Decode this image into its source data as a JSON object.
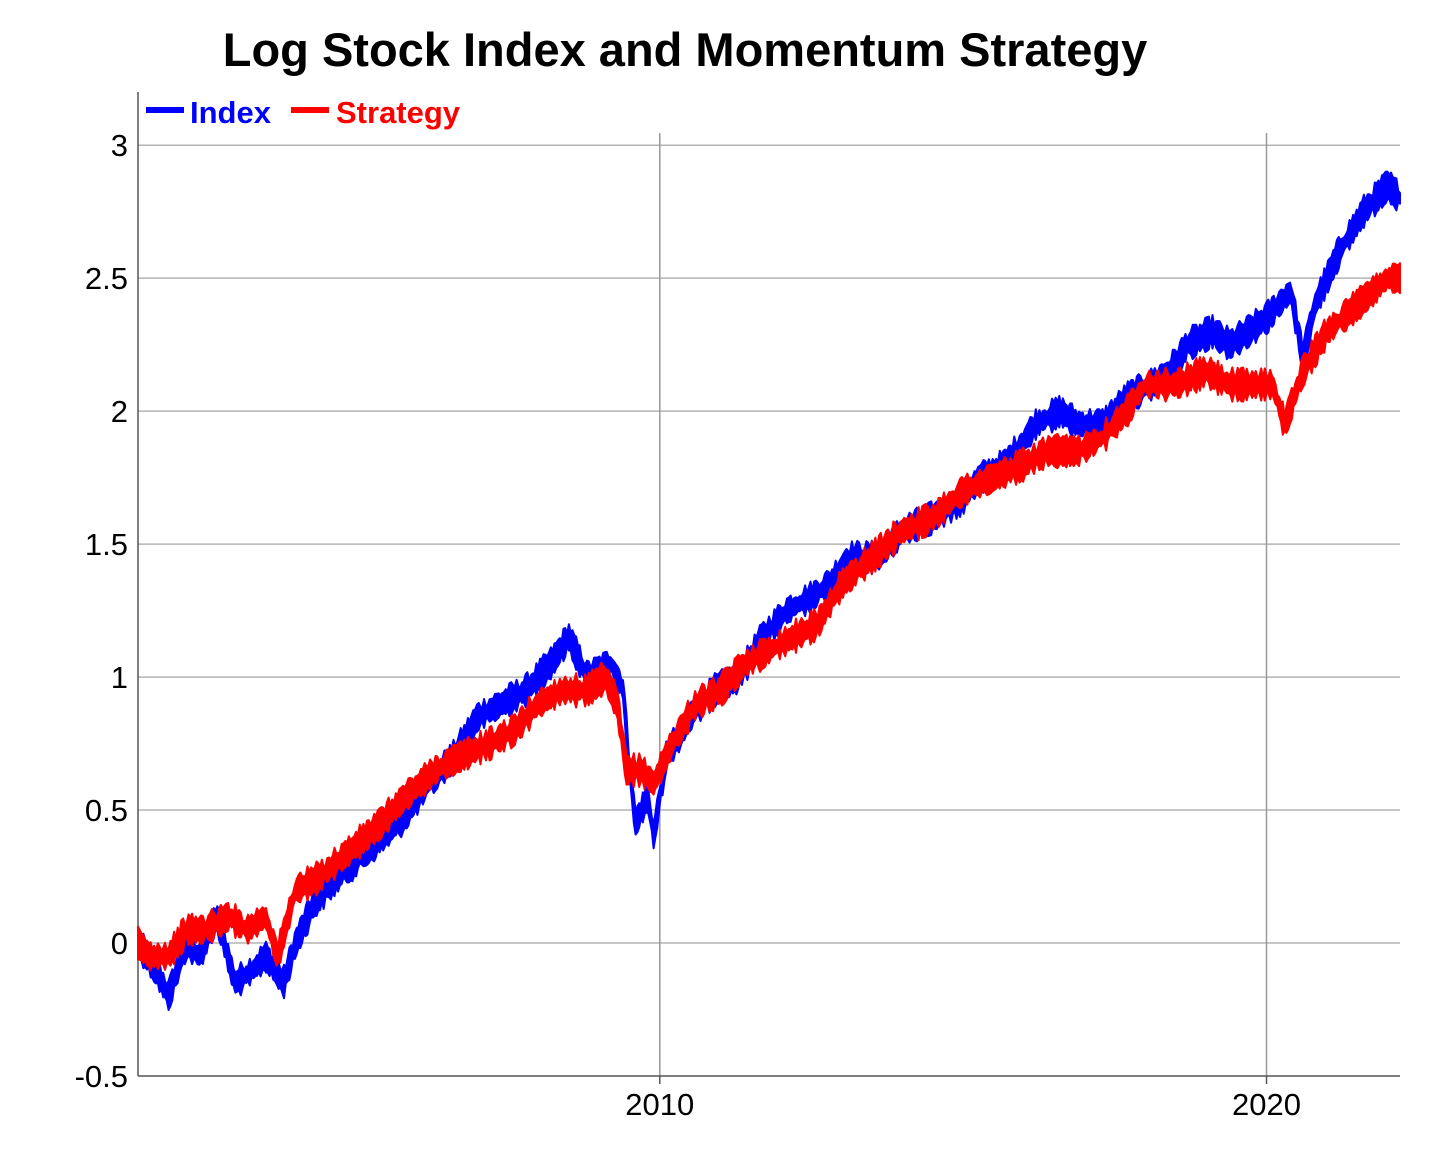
{
  "chart_data": {
    "type": "line",
    "title": "Log Stock Index and Momentum Strategy",
    "xlabel": "",
    "ylabel": "",
    "xlim": [
      2001.4,
      2022.2
    ],
    "ylim": [
      -0.5,
      3.2
    ],
    "x_ticks": [
      2010,
      2020
    ],
    "x_tick_labels": [
      "2010",
      "2020"
    ],
    "y_ticks": [
      -0.5,
      0,
      0.5,
      1,
      1.5,
      2,
      2.5,
      3
    ],
    "y_tick_labels": [
      "-0.5",
      "0",
      "0.5",
      "1",
      "1.5",
      "2",
      "2.5",
      "3"
    ],
    "grid": true,
    "legend_position": "top-left",
    "series": [
      {
        "name": "Index",
        "color": "#0000ff",
        "points": [
          [
            2001.4,
            0.0
          ],
          [
            2001.7,
            -0.1
          ],
          [
            2001.9,
            -0.2
          ],
          [
            2002.2,
            0.0
          ],
          [
            2002.4,
            -0.05
          ],
          [
            2002.7,
            0.1
          ],
          [
            2003.0,
            -0.15
          ],
          [
            2003.3,
            -0.1
          ],
          [
            2003.5,
            -0.05
          ],
          [
            2003.8,
            -0.15
          ],
          [
            2004.0,
            0.0
          ],
          [
            2004.3,
            0.15
          ],
          [
            2004.7,
            0.25
          ],
          [
            2005.2,
            0.35
          ],
          [
            2005.7,
            0.45
          ],
          [
            2006.2,
            0.6
          ],
          [
            2006.6,
            0.7
          ],
          [
            2007.0,
            0.85
          ],
          [
            2007.4,
            0.9
          ],
          [
            2007.8,
            0.95
          ],
          [
            2008.2,
            1.05
          ],
          [
            2008.5,
            1.15
          ],
          [
            2008.8,
            1.0
          ],
          [
            2009.2,
            1.05
          ],
          [
            2009.4,
            0.95
          ],
          [
            2009.5,
            0.65
          ],
          [
            2009.6,
            0.45
          ],
          [
            2009.8,
            0.55
          ],
          [
            2009.9,
            0.4
          ],
          [
            2010.1,
            0.7
          ],
          [
            2010.5,
            0.85
          ],
          [
            2010.9,
            0.95
          ],
          [
            2011.3,
            1.0
          ],
          [
            2011.7,
            1.15
          ],
          [
            2012.1,
            1.25
          ],
          [
            2012.5,
            1.3
          ],
          [
            2012.8,
            1.35
          ],
          [
            2013.1,
            1.45
          ],
          [
            2013.6,
            1.45
          ],
          [
            2014.0,
            1.55
          ],
          [
            2014.5,
            1.6
          ],
          [
            2014.9,
            1.65
          ],
          [
            2015.3,
            1.75
          ],
          [
            2015.7,
            1.8
          ],
          [
            2016.2,
            1.95
          ],
          [
            2016.6,
            2.0
          ],
          [
            2016.9,
            1.95
          ],
          [
            2017.3,
            1.95
          ],
          [
            2017.7,
            2.05
          ],
          [
            2018.1,
            2.1
          ],
          [
            2018.4,
            2.15
          ],
          [
            2018.7,
            2.25
          ],
          [
            2019.1,
            2.3
          ],
          [
            2019.4,
            2.25
          ],
          [
            2019.7,
            2.3
          ],
          [
            2020.0,
            2.35
          ],
          [
            2020.4,
            2.45
          ],
          [
            2020.6,
            2.2
          ],
          [
            2020.8,
            2.4
          ],
          [
            2021.2,
            2.6
          ],
          [
            2021.6,
            2.75
          ],
          [
            2022.0,
            2.85
          ],
          [
            2022.2,
            2.8
          ]
        ]
      },
      {
        "name": "Strategy",
        "color": "#ff0000",
        "points": [
          [
            2001.4,
            0.0
          ],
          [
            2001.6,
            -0.05
          ],
          [
            2001.9,
            -0.05
          ],
          [
            2002.2,
            0.05
          ],
          [
            2002.5,
            0.05
          ],
          [
            2002.9,
            0.1
          ],
          [
            2003.2,
            0.05
          ],
          [
            2003.5,
            0.1
          ],
          [
            2003.7,
            -0.05
          ],
          [
            2004.0,
            0.2
          ],
          [
            2004.4,
            0.25
          ],
          [
            2004.9,
            0.35
          ],
          [
            2005.4,
            0.45
          ],
          [
            2005.8,
            0.55
          ],
          [
            2006.3,
            0.65
          ],
          [
            2006.7,
            0.7
          ],
          [
            2007.2,
            0.75
          ],
          [
            2007.6,
            0.8
          ],
          [
            2008.0,
            0.9
          ],
          [
            2008.4,
            0.95
          ],
          [
            2008.8,
            0.95
          ],
          [
            2009.1,
            1.0
          ],
          [
            2009.3,
            0.9
          ],
          [
            2009.45,
            0.65
          ],
          [
            2009.7,
            0.65
          ],
          [
            2009.9,
            0.6
          ],
          [
            2010.2,
            0.75
          ],
          [
            2010.6,
            0.9
          ],
          [
            2011.0,
            0.95
          ],
          [
            2011.4,
            1.05
          ],
          [
            2011.8,
            1.1
          ],
          [
            2012.2,
            1.15
          ],
          [
            2012.6,
            1.2
          ],
          [
            2013.0,
            1.35
          ],
          [
            2013.5,
            1.45
          ],
          [
            2014.0,
            1.55
          ],
          [
            2014.5,
            1.6
          ],
          [
            2015.0,
            1.7
          ],
          [
            2015.5,
            1.75
          ],
          [
            2016.0,
            1.8
          ],
          [
            2016.4,
            1.85
          ],
          [
            2016.9,
            1.85
          ],
          [
            2017.3,
            1.9
          ],
          [
            2017.7,
            2.0
          ],
          [
            2018.0,
            2.1
          ],
          [
            2018.5,
            2.1
          ],
          [
            2019.0,
            2.15
          ],
          [
            2019.4,
            2.1
          ],
          [
            2019.8,
            2.1
          ],
          [
            2020.1,
            2.1
          ],
          [
            2020.3,
            1.95
          ],
          [
            2020.6,
            2.15
          ],
          [
            2021.0,
            2.3
          ],
          [
            2021.5,
            2.4
          ],
          [
            2022.0,
            2.5
          ],
          [
            2022.2,
            2.5
          ]
        ]
      }
    ]
  }
}
